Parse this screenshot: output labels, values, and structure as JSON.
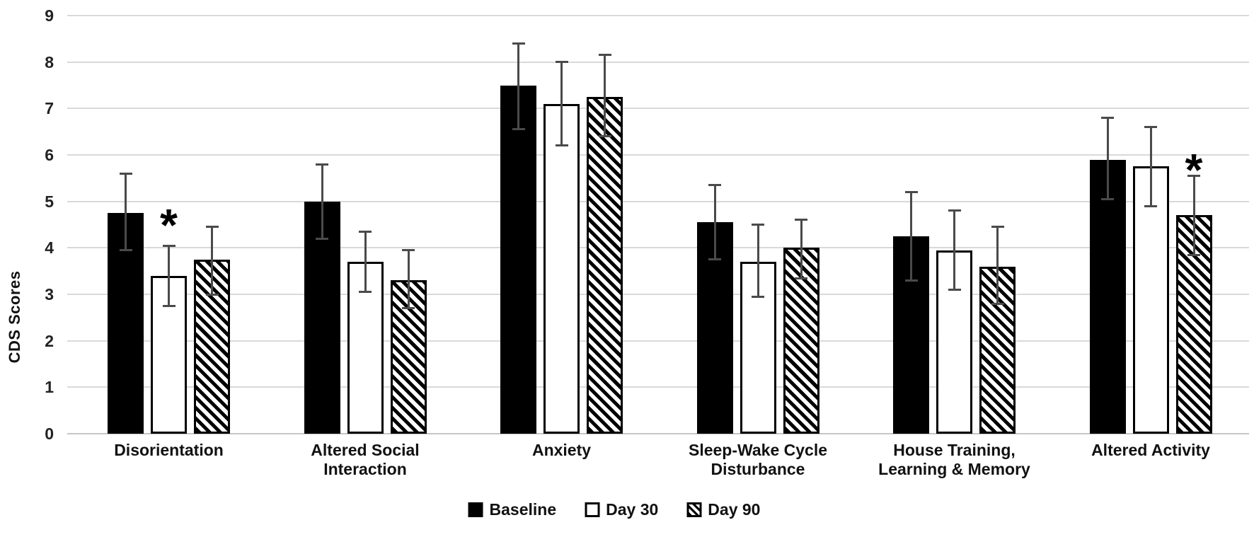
{
  "chart_data": {
    "type": "bar",
    "title": "",
    "xlabel": "",
    "ylabel": "CDS Scores",
    "ylim": [
      0,
      9
    ],
    "yticks": [
      0,
      1,
      2,
      3,
      4,
      5,
      6,
      7,
      8,
      9
    ],
    "grid": "horizontal",
    "legend_position": "bottom-center",
    "categories": [
      "Disorientation",
      "Altered Social Interaction",
      "Anxiety",
      "Sleep-Wake Cycle Disturbance",
      "House Training, Learning & Memory",
      "Altered Activity"
    ],
    "category_label_lines": [
      [
        "Disorientation"
      ],
      [
        "Altered Social",
        "Interaction"
      ],
      [
        "Anxiety"
      ],
      [
        "Sleep-Wake Cycle",
        "Disturbance"
      ],
      [
        "House Training,",
        "Learning & Memory"
      ],
      [
        "Altered Activity"
      ]
    ],
    "series": [
      {
        "name": "Baseline",
        "style": "solid",
        "values": [
          4.75,
          5.0,
          7.5,
          4.55,
          4.25,
          5.9
        ],
        "error_low": [
          3.95,
          4.2,
          6.55,
          3.75,
          3.3,
          5.05
        ],
        "error_high": [
          5.6,
          5.8,
          8.4,
          5.35,
          5.2,
          6.8
        ]
      },
      {
        "name": "Day 30",
        "style": "open",
        "values": [
          3.4,
          3.7,
          7.1,
          3.7,
          3.95,
          5.75
        ],
        "error_low": [
          2.75,
          3.05,
          6.2,
          2.95,
          3.1,
          4.9
        ],
        "error_high": [
          4.05,
          4.35,
          8.0,
          4.5,
          4.8,
          6.6
        ]
      },
      {
        "name": "Day 90",
        "style": "hatched",
        "values": [
          3.75,
          3.3,
          7.25,
          4.0,
          3.6,
          4.7
        ],
        "error_low": [
          3.0,
          2.7,
          6.4,
          3.35,
          2.8,
          3.85
        ],
        "error_high": [
          4.45,
          3.95,
          8.15,
          4.6,
          4.45,
          5.55
        ]
      }
    ],
    "annotations": [
      {
        "symbol": "*",
        "category_index": 0,
        "series_index": 1,
        "y": 4.68,
        "meaning": "significance-marker"
      },
      {
        "symbol": "*",
        "category_index": 5,
        "series_index": 2,
        "y": 5.86,
        "meaning": "significance-marker"
      }
    ],
    "colors": {
      "bar_fill": "#000000",
      "bar_border": "#000000",
      "error_bar": "#4a4a4a",
      "gridline": "#d9d9d9",
      "axis_line": "#c6c6c6",
      "text": "#111111",
      "background": "#ffffff"
    }
  }
}
